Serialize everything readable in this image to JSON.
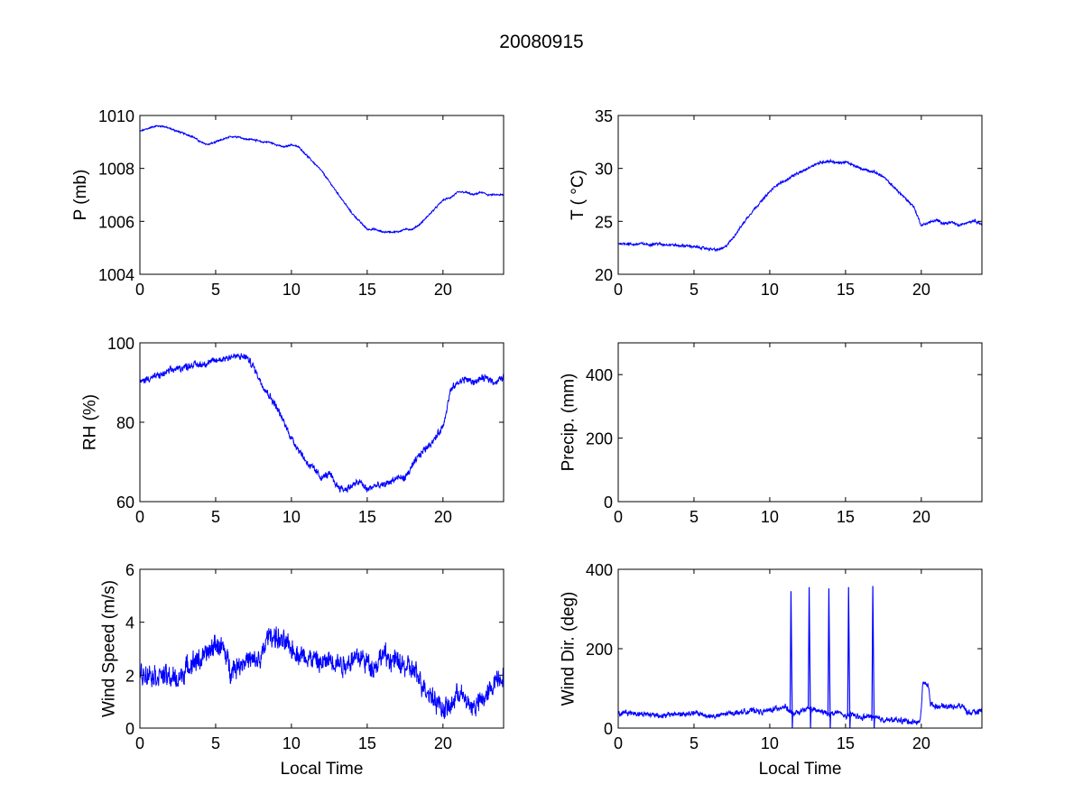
{
  "figure": {
    "title": "20080915",
    "line_color": "#0000ff",
    "background": "#ffffff"
  },
  "chart_data": [
    {
      "type": "line",
      "id": "pressure",
      "title": "",
      "xlabel": "",
      "ylabel": "P (mb)",
      "xlim": [
        0,
        24
      ],
      "ylim": [
        1004,
        1010
      ],
      "xticks": [
        0,
        5,
        10,
        15,
        20
      ],
      "yticks": [
        1004,
        1006,
        1008,
        1010
      ],
      "grid": false,
      "noise": 0.04,
      "series": [
        {
          "x": [
            0,
            0.5,
            1,
            1.5,
            2,
            2.5,
            3,
            3.5,
            4,
            4.5,
            5,
            5.5,
            6,
            6.5,
            7,
            7.5,
            8,
            8.5,
            9,
            9.5,
            10,
            10.5,
            11,
            11.5,
            12,
            12.5,
            13,
            13.5,
            14,
            14.5,
            15,
            15.5,
            16,
            16.5,
            17,
            17.5,
            18,
            18.5,
            19,
            19.5,
            20,
            20.5,
            21,
            21.5,
            22,
            22.5,
            23,
            23.5,
            24
          ],
          "y": [
            1009.4,
            1009.5,
            1009.6,
            1009.6,
            1009.5,
            1009.4,
            1009.3,
            1009.2,
            1009.0,
            1008.9,
            1009.0,
            1009.1,
            1009.2,
            1009.2,
            1009.1,
            1009.1,
            1009.0,
            1009.0,
            1008.9,
            1008.8,
            1008.9,
            1008.8,
            1008.5,
            1008.2,
            1007.9,
            1007.5,
            1007.1,
            1006.7,
            1006.3,
            1006.0,
            1005.7,
            1005.7,
            1005.6,
            1005.6,
            1005.6,
            1005.7,
            1005.7,
            1005.9,
            1006.2,
            1006.5,
            1006.8,
            1006.9,
            1007.1,
            1007.1,
            1007.0,
            1007.1,
            1007.0,
            1007.0,
            1007.0
          ]
        }
      ]
    },
    {
      "type": "line",
      "id": "temperature",
      "title": "",
      "xlabel": "",
      "ylabel": "T ( °C)",
      "xlim": [
        0,
        24
      ],
      "ylim": [
        20,
        35
      ],
      "xticks": [
        0,
        5,
        10,
        15,
        20
      ],
      "yticks": [
        20,
        25,
        30,
        35
      ],
      "grid": false,
      "noise": 0.15,
      "series": [
        {
          "x": [
            0,
            0.5,
            1,
            1.5,
            2,
            2.5,
            3,
            3.5,
            4,
            4.5,
            5,
            5.5,
            6,
            6.5,
            7,
            7.5,
            8,
            8.5,
            9,
            9.5,
            10,
            10.5,
            11,
            11.5,
            12,
            12.5,
            13,
            13.5,
            14,
            14.5,
            15,
            15.5,
            16,
            16.5,
            17,
            17.5,
            18,
            18.5,
            19,
            19.5,
            20,
            20.5,
            21,
            21.5,
            22,
            22.5,
            23,
            23.5,
            24
          ],
          "y": [
            22.9,
            22.9,
            22.8,
            22.9,
            22.8,
            22.9,
            22.8,
            22.8,
            22.7,
            22.7,
            22.6,
            22.5,
            22.4,
            22.3,
            22.5,
            23.3,
            24.3,
            25.3,
            26.2,
            27.0,
            27.8,
            28.5,
            28.8,
            29.3,
            29.6,
            30.0,
            30.4,
            30.6,
            30.7,
            30.5,
            30.6,
            30.3,
            30.0,
            29.8,
            29.6,
            29.2,
            28.5,
            27.8,
            27.1,
            26.4,
            24.6,
            24.9,
            25.1,
            24.8,
            24.9,
            24.6,
            24.9,
            25.1,
            24.7
          ]
        }
      ]
    },
    {
      "type": "line",
      "id": "humidity",
      "title": "",
      "xlabel": "",
      "ylabel": "RH (%)",
      "xlim": [
        0,
        24
      ],
      "ylim": [
        60,
        100
      ],
      "xticks": [
        0,
        5,
        10,
        15,
        20
      ],
      "yticks": [
        60,
        80,
        100
      ],
      "grid": false,
      "noise": 1.2,
      "series": [
        {
          "x": [
            0,
            0.5,
            1,
            1.5,
            2,
            2.5,
            3,
            3.5,
            4,
            4.5,
            5,
            5.5,
            6,
            6.5,
            7,
            7.5,
            8,
            8.5,
            9,
            9.5,
            10,
            10.5,
            11,
            11.5,
            12,
            12.5,
            13,
            13.5,
            14,
            14.5,
            15,
            15.5,
            16,
            16.5,
            17,
            17.5,
            18,
            18.5,
            19,
            19.5,
            20,
            20.5,
            21,
            21.5,
            22,
            22.5,
            23,
            23.5,
            24
          ],
          "y": [
            90,
            91,
            91.5,
            92,
            93,
            93.5,
            94,
            94.5,
            94.5,
            95,
            95.5,
            96,
            96.5,
            96.5,
            96.5,
            94,
            90,
            87,
            84,
            80,
            76,
            73,
            70,
            68,
            66,
            67,
            64,
            63,
            64,
            65,
            63,
            64,
            64,
            65,
            66,
            66,
            69,
            72,
            74,
            76,
            79,
            88,
            90,
            91,
            90,
            91,
            91,
            90,
            91.5
          ]
        }
      ]
    },
    {
      "type": "line",
      "id": "precipitation",
      "title": "",
      "xlabel": "",
      "ylabel": "Precip. (mm)",
      "xlim": [
        0,
        24
      ],
      "ylim": [
        0,
        500
      ],
      "xticks": [
        0,
        5,
        10,
        15,
        20
      ],
      "yticks": [
        0,
        200,
        400
      ],
      "grid": false,
      "noise": 0,
      "series": []
    },
    {
      "type": "line",
      "id": "wind-speed",
      "title": "",
      "xlabel": "Local Time",
      "ylabel": "Wind Speed (m/s)",
      "xlim": [
        0,
        24
      ],
      "ylim": [
        0,
        6
      ],
      "xticks": [
        0,
        5,
        10,
        15,
        20
      ],
      "yticks": [
        0,
        2,
        4,
        6
      ],
      "grid": false,
      "noise": 0.55,
      "series": [
        {
          "x": [
            0,
            0.5,
            1,
            1.5,
            2,
            2.5,
            3,
            3.5,
            4,
            4.5,
            5,
            5.5,
            6,
            6.5,
            7,
            7.5,
            8,
            8.5,
            9,
            9.5,
            10,
            10.5,
            11,
            11.5,
            12,
            12.5,
            13,
            13.5,
            14,
            14.5,
            15,
            15.5,
            16,
            16.5,
            17,
            17.5,
            18,
            18.5,
            19,
            19.5,
            20,
            20.5,
            21,
            21.5,
            22,
            22.5,
            23,
            23.5,
            24
          ],
          "y": [
            2.0,
            2.1,
            2.0,
            2.0,
            1.9,
            1.8,
            2.2,
            2.5,
            2.6,
            2.8,
            3.2,
            3.0,
            2.2,
            2.4,
            2.6,
            2.5,
            2.6,
            3.6,
            3.4,
            3.2,
            3.0,
            2.8,
            2.7,
            2.6,
            2.4,
            2.6,
            2.5,
            2.4,
            2.6,
            2.7,
            2.5,
            2.3,
            2.8,
            2.6,
            2.5,
            2.3,
            2.2,
            1.8,
            1.4,
            1.1,
            0.7,
            0.8,
            1.4,
            1.0,
            0.8,
            1.0,
            1.3,
            1.9,
            2.0
          ]
        }
      ]
    },
    {
      "type": "line",
      "id": "wind-direction",
      "title": "",
      "xlabel": "Local Time",
      "ylabel": "Wind Dir. (deg)",
      "xlim": [
        0,
        24
      ],
      "ylim": [
        0,
        400
      ],
      "xticks": [
        0,
        5,
        10,
        15,
        20
      ],
      "yticks": [
        0,
        200,
        400
      ],
      "grid": false,
      "noise": 9,
      "spikes": [
        {
          "x": 11.4,
          "y": 345
        },
        {
          "x": 12.6,
          "y": 355
        },
        {
          "x": 13.9,
          "y": 352
        },
        {
          "x": 15.2,
          "y": 355
        },
        {
          "x": 16.8,
          "y": 358
        }
      ],
      "series": [
        {
          "x": [
            0,
            0.5,
            1,
            1.5,
            2,
            2.5,
            3,
            3.5,
            4,
            4.5,
            5,
            5.5,
            6,
            6.5,
            7,
            7.5,
            8,
            8.5,
            9,
            9.5,
            10,
            10.5,
            11,
            11.5,
            12,
            12.5,
            13,
            13.5,
            14,
            14.5,
            15,
            15.5,
            16,
            16.5,
            17,
            17.5,
            18,
            18.5,
            19,
            19.5,
            19.9,
            20.0,
            20.1,
            20.5,
            20.6,
            21,
            21.5,
            22,
            22.5,
            22.8,
            23,
            23.5,
            24
          ],
          "y": [
            35,
            40,
            38,
            36,
            35,
            34,
            30,
            35,
            36,
            34,
            38,
            35,
            30,
            30,
            35,
            38,
            40,
            42,
            45,
            40,
            45,
            50,
            55,
            35,
            40,
            50,
            45,
            40,
            35,
            40,
            30,
            35,
            25,
            30,
            25,
            22,
            20,
            20,
            18,
            15,
            15,
            50,
            115,
            105,
            60,
            55,
            55,
            55,
            55,
            55,
            40,
            38,
            45
          ]
        }
      ]
    }
  ]
}
